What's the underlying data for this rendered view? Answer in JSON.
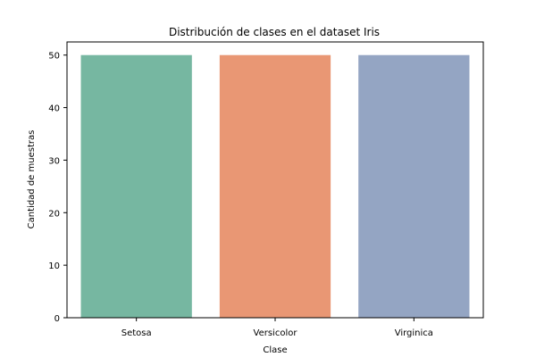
{
  "chart_data": {
    "type": "bar",
    "title": "Distribución de clases en el dataset Iris",
    "xlabel": "Clase",
    "ylabel": "Cantidad de muestras",
    "categories": [
      "Setosa",
      "Versicolor",
      "Virginica"
    ],
    "values": [
      50,
      50,
      50
    ],
    "colors": [
      "#76b7a1",
      "#e99774",
      "#94a5c3"
    ],
    "ylim": [
      0,
      52.5
    ],
    "yticks": [
      0,
      10,
      20,
      30,
      40,
      50
    ],
    "grid": false,
    "legend": "none"
  }
}
